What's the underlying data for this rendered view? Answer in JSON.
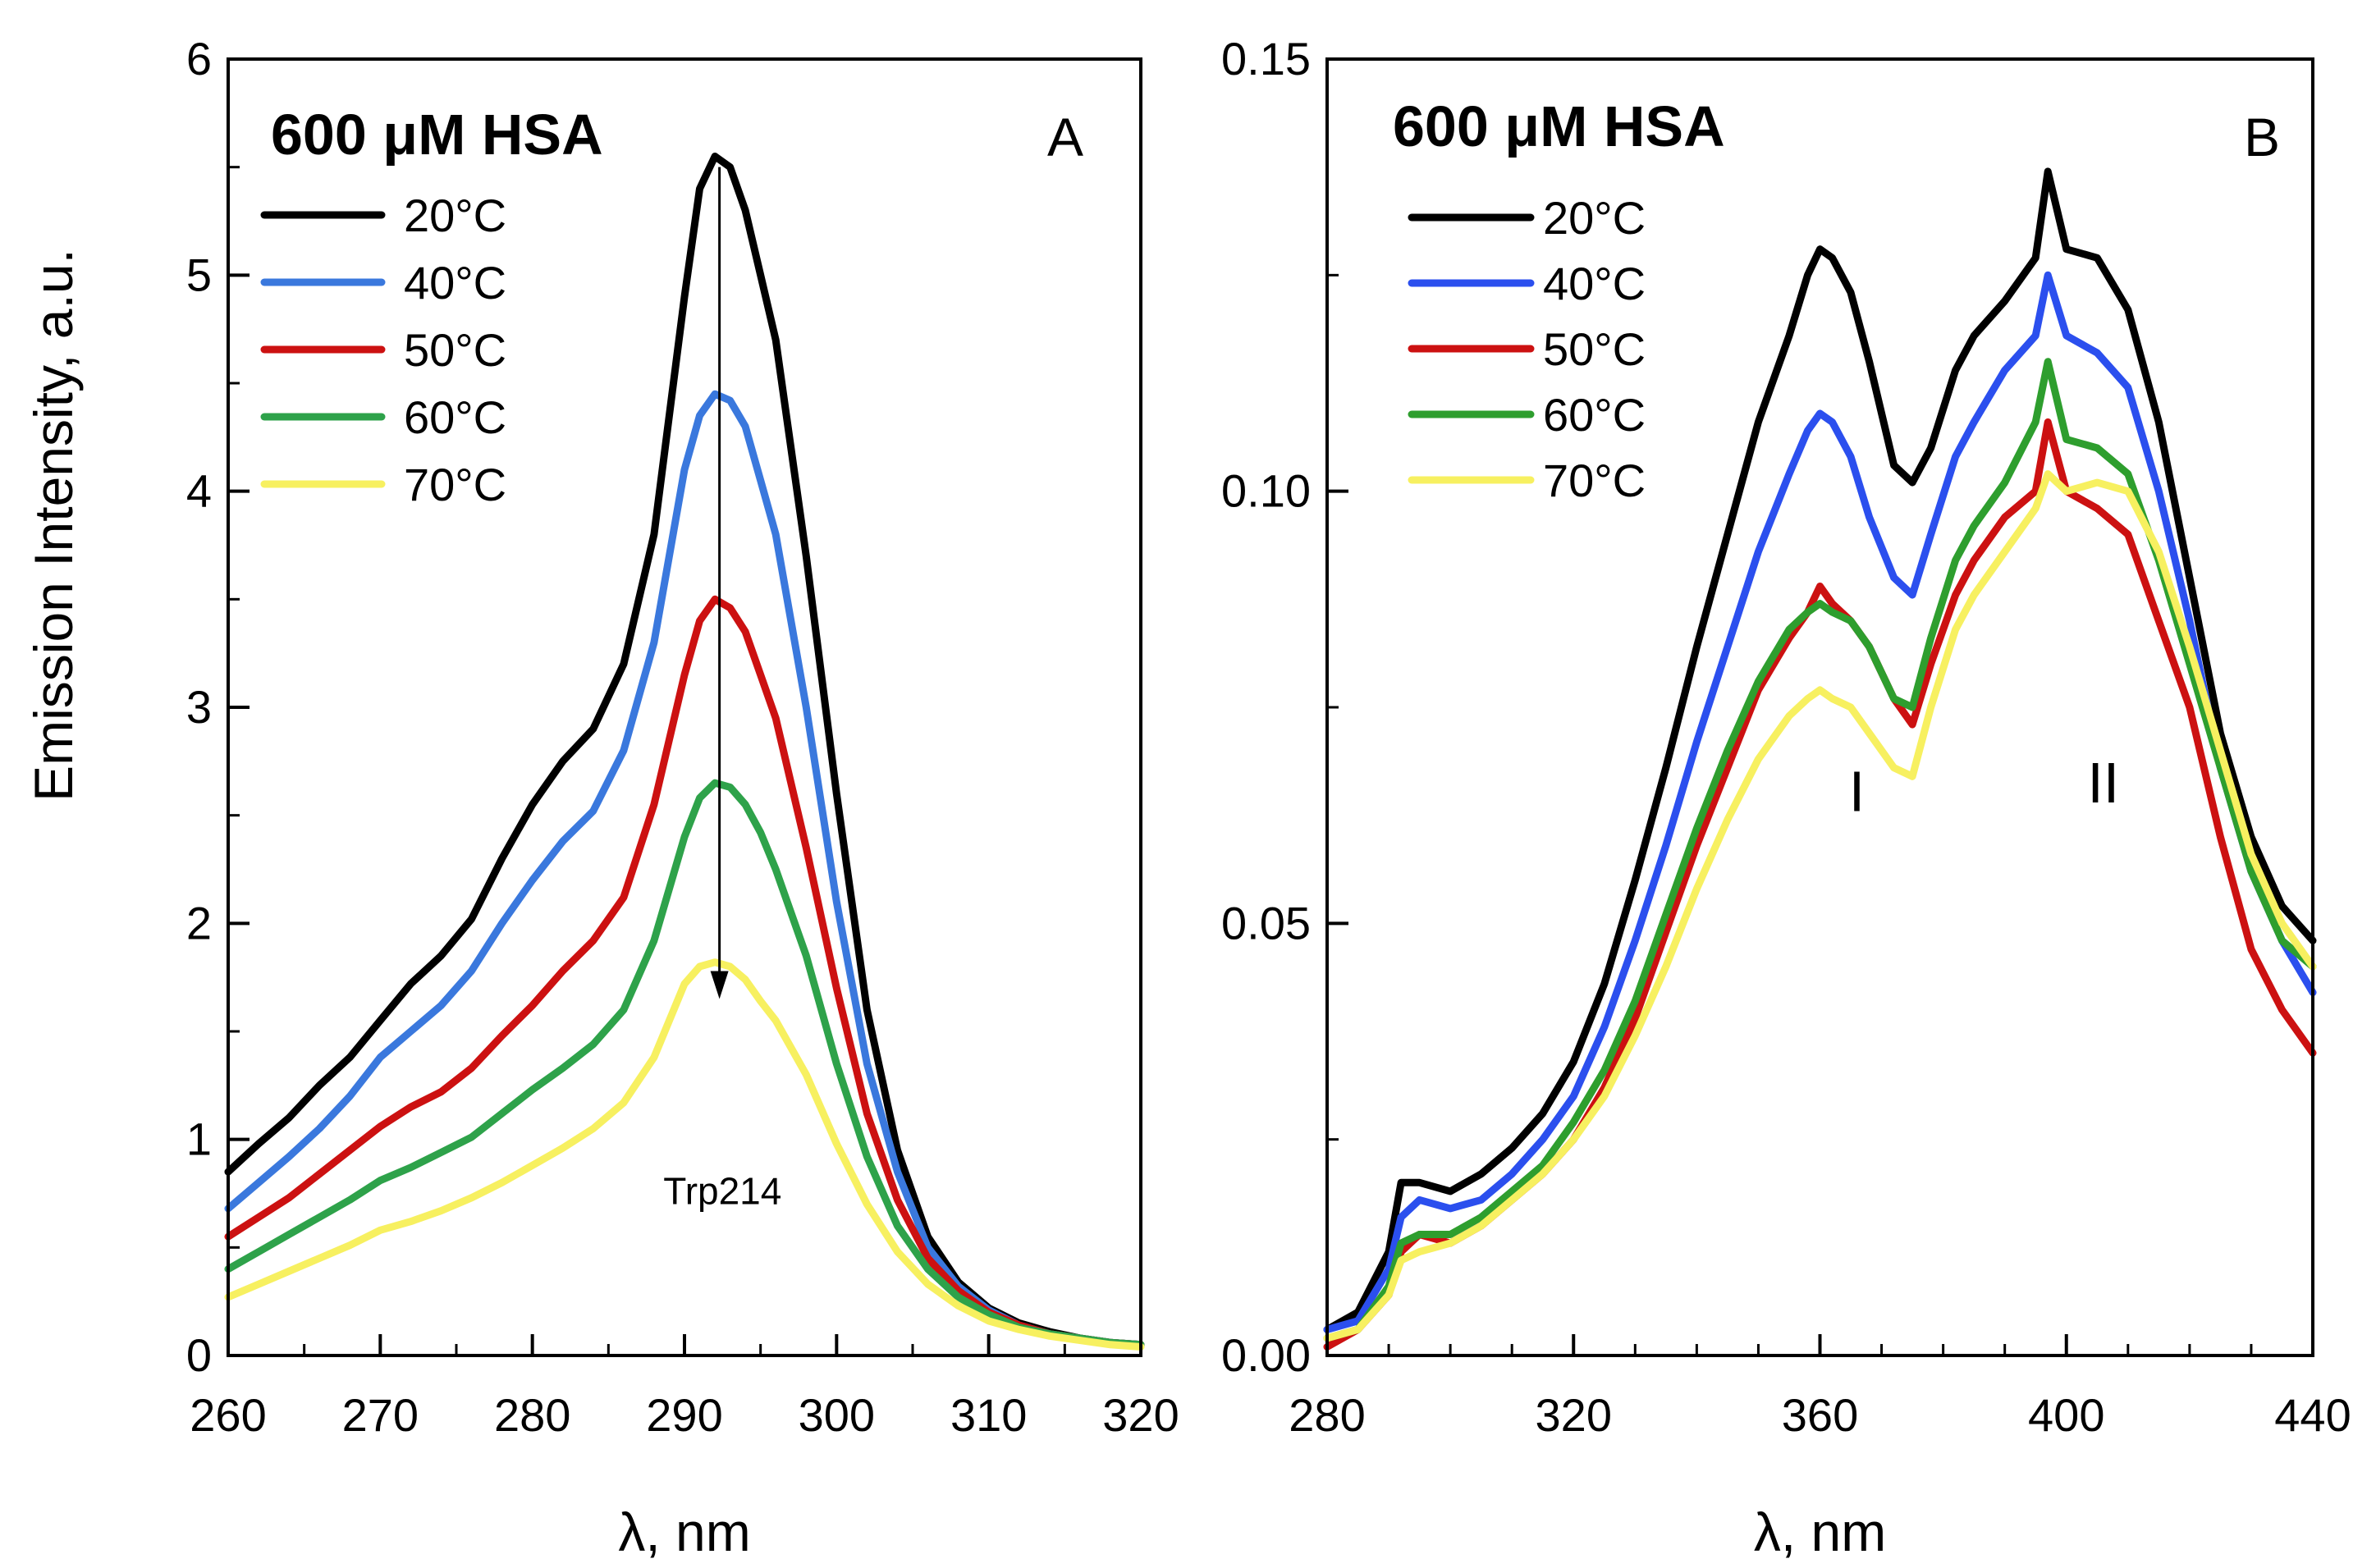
{
  "shared": {
    "ylabel": "Emission Intensity, a.u.",
    "xlabel": "λ, nm"
  },
  "chart_data": [
    {
      "type": "line",
      "panel_label": "A",
      "title": "600 μM HSA",
      "xlabel": "λ, nm",
      "ylabel": "Emission Intensity, a.u.",
      "xlim": [
        260,
        320
      ],
      "ylim": [
        0,
        6
      ],
      "xticks": [
        260,
        270,
        280,
        290,
        300,
        310,
        320
      ],
      "yticks": [
        0,
        1,
        2,
        3,
        4,
        5,
        6
      ],
      "ytick_labels": [
        "0",
        "1",
        "2",
        "3",
        "4",
        "5",
        "6"
      ],
      "annotation": {
        "text": "Trp214",
        "x": 292.5,
        "y": 0.7
      },
      "arrow": {
        "x": 292.3,
        "from": 5.5,
        "to": 1.65
      },
      "legend_position": "top-left",
      "series": [
        {
          "name": "20°C",
          "color": "#000000",
          "x": [
            260,
            262,
            264,
            266,
            268,
            270,
            272,
            274,
            276,
            278,
            280,
            282,
            284,
            286,
            288,
            290,
            291,
            292,
            293,
            294,
            295,
            296,
            298,
            300,
            302,
            304,
            306,
            308,
            310,
            312,
            314,
            316,
            318,
            320
          ],
          "y": [
            0.85,
            0.98,
            1.1,
            1.25,
            1.38,
            1.55,
            1.72,
            1.85,
            2.02,
            2.3,
            2.55,
            2.75,
            2.9,
            3.2,
            3.8,
            4.9,
            5.4,
            5.55,
            5.5,
            5.3,
            5.0,
            4.7,
            3.7,
            2.6,
            1.6,
            0.95,
            0.55,
            0.34,
            0.22,
            0.15,
            0.11,
            0.08,
            0.06,
            0.05
          ]
        },
        {
          "name": "40°C",
          "color": "#3a78dd",
          "x": [
            260,
            262,
            264,
            266,
            268,
            270,
            272,
            274,
            276,
            278,
            280,
            282,
            284,
            286,
            288,
            290,
            291,
            292,
            293,
            294,
            295,
            296,
            298,
            300,
            302,
            304,
            306,
            308,
            310,
            312,
            314,
            316,
            318,
            320
          ],
          "y": [
            0.68,
            0.8,
            0.92,
            1.05,
            1.2,
            1.38,
            1.5,
            1.62,
            1.78,
            2.0,
            2.2,
            2.38,
            2.52,
            2.8,
            3.3,
            4.1,
            4.35,
            4.45,
            4.42,
            4.3,
            4.05,
            3.8,
            3.0,
            2.1,
            1.35,
            0.85,
            0.5,
            0.32,
            0.21,
            0.14,
            0.1,
            0.08,
            0.06,
            0.05
          ]
        },
        {
          "name": "50°C",
          "color": "#cc1111",
          "x": [
            260,
            262,
            264,
            266,
            268,
            270,
            272,
            274,
            276,
            278,
            280,
            282,
            284,
            286,
            288,
            290,
            291,
            292,
            293,
            294,
            295,
            296,
            298,
            300,
            302,
            304,
            306,
            308,
            310,
            312,
            314,
            316,
            318,
            320
          ],
          "y": [
            0.55,
            0.64,
            0.73,
            0.84,
            0.95,
            1.06,
            1.15,
            1.22,
            1.33,
            1.48,
            1.62,
            1.78,
            1.92,
            2.12,
            2.55,
            3.15,
            3.4,
            3.5,
            3.46,
            3.35,
            3.15,
            2.95,
            2.35,
            1.7,
            1.12,
            0.72,
            0.45,
            0.3,
            0.2,
            0.14,
            0.1,
            0.08,
            0.06,
            0.05
          ]
        },
        {
          "name": "60°C",
          "color": "#2ea24a",
          "x": [
            260,
            262,
            264,
            266,
            268,
            270,
            272,
            274,
            276,
            278,
            280,
            282,
            284,
            286,
            288,
            290,
            291,
            292,
            293,
            294,
            295,
            296,
            298,
            300,
            302,
            304,
            306,
            308,
            310,
            312,
            314,
            316,
            318,
            320
          ],
          "y": [
            0.4,
            0.48,
            0.56,
            0.64,
            0.72,
            0.81,
            0.87,
            0.94,
            1.01,
            1.12,
            1.23,
            1.33,
            1.44,
            1.6,
            1.92,
            2.4,
            2.58,
            2.65,
            2.63,
            2.55,
            2.42,
            2.25,
            1.85,
            1.35,
            0.92,
            0.6,
            0.4,
            0.27,
            0.19,
            0.13,
            0.1,
            0.08,
            0.06,
            0.05
          ]
        },
        {
          "name": "70°C",
          "color": "#f7f060",
          "x": [
            260,
            262,
            264,
            266,
            268,
            270,
            272,
            274,
            276,
            278,
            280,
            282,
            284,
            286,
            288,
            290,
            291,
            292,
            293,
            294,
            295,
            296,
            298,
            300,
            302,
            304,
            306,
            308,
            310,
            312,
            314,
            316,
            318,
            320
          ],
          "y": [
            0.27,
            0.33,
            0.39,
            0.45,
            0.51,
            0.58,
            0.62,
            0.67,
            0.73,
            0.8,
            0.88,
            0.96,
            1.05,
            1.17,
            1.38,
            1.72,
            1.8,
            1.82,
            1.8,
            1.74,
            1.64,
            1.55,
            1.3,
            0.98,
            0.7,
            0.48,
            0.33,
            0.23,
            0.16,
            0.12,
            0.09,
            0.07,
            0.05,
            0.04
          ]
        }
      ]
    },
    {
      "type": "line",
      "panel_label": "B",
      "title": "600 μM HSA",
      "xlabel": "λ, nm",
      "ylabel": "",
      "xlim": [
        280,
        440
      ],
      "ylim": [
        0,
        0.15
      ],
      "xticks": [
        280,
        320,
        360,
        400,
        440
      ],
      "yticks": [
        0,
        0.05,
        0.1,
        0.15
      ],
      "ytick_labels": [
        "0.00",
        "0.05",
        "0.10",
        "0.15"
      ],
      "peak_labels": [
        {
          "text": "I",
          "x": 366,
          "y": 0.063
        },
        {
          "text": "II",
          "x": 406,
          "y": 0.064
        }
      ],
      "legend_position": "top-left",
      "series": [
        {
          "name": "20°C",
          "color": "#000000",
          "x": [
            280,
            285,
            290,
            292,
            295,
            300,
            305,
            310,
            315,
            320,
            325,
            330,
            335,
            340,
            345,
            350,
            355,
            358,
            360,
            362,
            365,
            368,
            372,
            375,
            378,
            382,
            385,
            390,
            395,
            397,
            400,
            405,
            410,
            415,
            420,
            425,
            430,
            435,
            440
          ],
          "y": [
            0.003,
            0.005,
            0.012,
            0.02,
            0.02,
            0.019,
            0.021,
            0.024,
            0.028,
            0.034,
            0.043,
            0.055,
            0.068,
            0.082,
            0.095,
            0.108,
            0.118,
            0.125,
            0.128,
            0.127,
            0.123,
            0.115,
            0.103,
            0.101,
            0.105,
            0.114,
            0.118,
            0.122,
            0.127,
            0.137,
            0.128,
            0.127,
            0.121,
            0.108,
            0.09,
            0.072,
            0.06,
            0.052,
            0.048
          ]
        },
        {
          "name": "40°C",
          "color": "#2b4fee",
          "x": [
            280,
            285,
            290,
            292,
            295,
            300,
            305,
            310,
            315,
            320,
            325,
            330,
            335,
            340,
            345,
            350,
            355,
            358,
            360,
            362,
            365,
            368,
            372,
            375,
            378,
            382,
            385,
            390,
            395,
            397,
            400,
            405,
            410,
            415,
            420,
            425,
            430,
            435,
            440
          ],
          "y": [
            0.003,
            0.004,
            0.01,
            0.016,
            0.018,
            0.017,
            0.018,
            0.021,
            0.025,
            0.03,
            0.038,
            0.048,
            0.059,
            0.071,
            0.082,
            0.093,
            0.102,
            0.107,
            0.109,
            0.108,
            0.104,
            0.097,
            0.09,
            0.088,
            0.095,
            0.104,
            0.108,
            0.114,
            0.118,
            0.125,
            0.118,
            0.116,
            0.112,
            0.1,
            0.085,
            0.068,
            0.056,
            0.048,
            0.042
          ]
        },
        {
          "name": "50°C",
          "color": "#cc1111",
          "x": [
            280,
            285,
            290,
            292,
            295,
            300,
            305,
            310,
            315,
            320,
            325,
            330,
            335,
            340,
            345,
            350,
            355,
            358,
            360,
            362,
            365,
            368,
            372,
            375,
            378,
            382,
            385,
            390,
            395,
            397,
            400,
            405,
            410,
            415,
            420,
            425,
            430,
            435,
            440
          ],
          "y": [
            0.001,
            0.003,
            0.007,
            0.012,
            0.014,
            0.013,
            0.015,
            0.018,
            0.021,
            0.025,
            0.031,
            0.039,
            0.049,
            0.059,
            0.068,
            0.077,
            0.083,
            0.086,
            0.089,
            0.087,
            0.085,
            0.082,
            0.076,
            0.073,
            0.08,
            0.088,
            0.092,
            0.097,
            0.1,
            0.108,
            0.1,
            0.098,
            0.095,
            0.085,
            0.075,
            0.06,
            0.047,
            0.04,
            0.035
          ]
        },
        {
          "name": "60°C",
          "color": "#2e9e2e",
          "x": [
            280,
            285,
            290,
            292,
            295,
            300,
            305,
            310,
            315,
            320,
            325,
            330,
            335,
            340,
            345,
            350,
            355,
            358,
            360,
            362,
            365,
            368,
            372,
            375,
            378,
            382,
            385,
            390,
            395,
            397,
            400,
            405,
            410,
            415,
            420,
            425,
            430,
            435,
            440
          ],
          "y": [
            0.002,
            0.003,
            0.008,
            0.013,
            0.014,
            0.014,
            0.016,
            0.019,
            0.022,
            0.027,
            0.033,
            0.041,
            0.051,
            0.061,
            0.07,
            0.078,
            0.084,
            0.086,
            0.087,
            0.086,
            0.085,
            0.082,
            0.076,
            0.075,
            0.083,
            0.092,
            0.096,
            0.101,
            0.108,
            0.115,
            0.106,
            0.105,
            0.102,
            0.092,
            0.08,
            0.068,
            0.056,
            0.048,
            0.045
          ]
        },
        {
          "name": "70°C",
          "color": "#f7f060",
          "x": [
            280,
            285,
            290,
            292,
            295,
            300,
            305,
            310,
            315,
            320,
            325,
            330,
            335,
            340,
            345,
            350,
            355,
            358,
            360,
            362,
            365,
            368,
            372,
            375,
            378,
            382,
            385,
            390,
            395,
            397,
            400,
            405,
            410,
            415,
            420,
            425,
            430,
            435,
            440
          ],
          "y": [
            0.002,
            0.003,
            0.007,
            0.011,
            0.012,
            0.013,
            0.015,
            0.018,
            0.021,
            0.025,
            0.03,
            0.037,
            0.045,
            0.054,
            0.062,
            0.069,
            0.074,
            0.076,
            0.077,
            0.076,
            0.075,
            0.072,
            0.068,
            0.067,
            0.075,
            0.084,
            0.088,
            0.093,
            0.098,
            0.102,
            0.1,
            0.101,
            0.1,
            0.093,
            0.082,
            0.07,
            0.058,
            0.05,
            0.045
          ]
        }
      ]
    }
  ]
}
